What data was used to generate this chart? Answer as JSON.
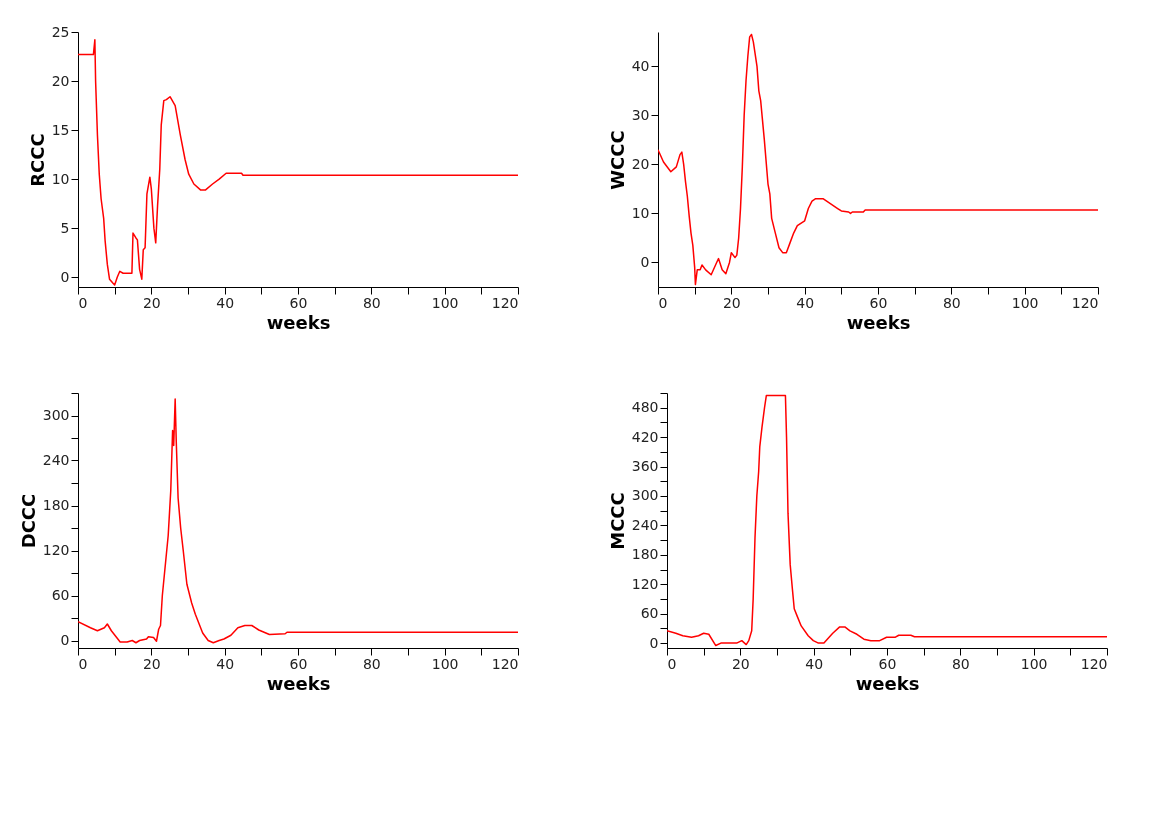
{
  "chart_data": [
    {
      "type": "line",
      "xlabel": "weeks",
      "ylabel": "RCCC",
      "xlim": [
        0,
        120
      ],
      "ylim": [
        -1,
        25
      ],
      "xticks": [
        0,
        {
          "value": 10,
          "label": null
        },
        20,
        {
          "value": 30,
          "label": null
        },
        40,
        {
          "value": 50,
          "label": null
        },
        60,
        {
          "value": 70,
          "label": null
        },
        80,
        {
          "value": 90,
          "label": null
        },
        100,
        {
          "value": 110,
          "label": null
        },
        120
      ],
      "yticks": [
        0,
        5,
        10,
        15,
        20,
        25
      ],
      "series": [
        {
          "color": "#ff0000",
          "x": [
            0,
            3,
            4.2,
            4.6,
            4.8,
            5.3,
            5.8,
            6.3,
            7,
            7.4,
            8,
            8.6,
            9.5,
            10,
            10.7,
            11.4,
            12.3,
            14.7,
            15,
            15.8,
            16.2,
            16.8,
            17.4,
            17.8,
            18.3,
            18.8,
            19.6,
            20,
            20.7,
            21.2,
            21.7,
            22.3,
            22.7,
            23.4,
            24.1,
            25.1,
            26.5,
            27.9,
            29.2,
            30.2,
            31.6,
            33.4,
            34.8,
            36.7,
            38.5,
            40.4,
            44.6,
            45,
            120
          ],
          "values": [
            22.7,
            22.7,
            22.7,
            24.2,
            20,
            14.5,
            10.5,
            8,
            6,
            3.7,
            1.3,
            -0.2,
            -0.6,
            -0.8,
            0,
            0.6,
            0.4,
            0.4,
            4.5,
            4,
            3.8,
            0.8,
            -0.2,
            2.8,
            3,
            8.5,
            10.2,
            9,
            5,
            3.5,
            7.3,
            11,
            15.5,
            18,
            18.1,
            18.4,
            17.5,
            14.5,
            12,
            10.5,
            9.5,
            8.9,
            8.9,
            9.5,
            10,
            10.6,
            10.6,
            10.4,
            10.4
          ]
        }
      ]
    },
    {
      "type": "line",
      "xlabel": "weeks",
      "ylabel": "WCCC",
      "xlim": [
        0,
        120
      ],
      "ylim": [
        -5,
        47
      ],
      "xticks": [
        0,
        {
          "value": 10,
          "label": null
        },
        20,
        {
          "value": 30,
          "label": null
        },
        40,
        {
          "value": 50,
          "label": null
        },
        60,
        {
          "value": 70,
          "label": null
        },
        80,
        {
          "value": 90,
          "label": null
        },
        100,
        {
          "value": 110,
          "label": null
        },
        120
      ],
      "yticks": [
        0,
        10,
        20,
        30,
        40
      ],
      "series": [
        {
          "color": "#ff0000",
          "x": [
            0,
            1.5,
            3.5,
            5,
            6,
            6.5,
            7,
            7.5,
            8,
            8.5,
            9,
            9.5,
            10,
            10.2,
            10.7,
            11.5,
            12,
            13,
            14.5,
            16,
            16.5,
            17.5,
            18.5,
            19.5,
            20,
            21,
            21.5,
            22,
            22.5,
            23,
            23.5,
            24,
            24.5,
            25,
            25.5,
            26,
            27,
            27.5,
            28,
            29,
            30,
            30.5,
            31,
            32,
            33,
            34,
            35,
            36,
            37,
            38,
            40,
            41,
            42,
            43,
            45,
            46,
            47,
            49,
            50,
            52,
            52.5,
            53,
            56,
            56.5,
            120
          ],
          "values": [
            23,
            20.5,
            18.5,
            19.5,
            22,
            22.5,
            20,
            16.5,
            13.5,
            9.5,
            6,
            3.5,
            -1,
            -4.5,
            -1.5,
            -1.5,
            -0.5,
            -1.5,
            -2.5,
            0,
            0.8,
            -1.5,
            -2.3,
            0,
            2,
            1,
            1.5,
            5,
            11,
            19.5,
            30,
            37,
            42,
            46,
            46.5,
            45,
            40,
            35,
            33,
            25,
            16,
            14,
            9,
            6,
            3,
            2,
            2,
            4,
            6,
            7.5,
            8.5,
            11,
            12.5,
            13,
            13,
            12.5,
            12,
            11,
            10.5,
            10.3,
            10,
            10.3,
            10.3,
            10.7,
            10.7
          ]
        }
      ]
    },
    {
      "type": "line",
      "xlabel": "weeks",
      "ylabel": "DCCC",
      "xlim": [
        0,
        120
      ],
      "ylim": [
        -10,
        330
      ],
      "xticks": [
        0,
        {
          "value": 10,
          "label": null
        },
        20,
        {
          "value": 30,
          "label": null
        },
        40,
        {
          "value": 50,
          "label": null
        },
        60,
        {
          "value": 70,
          "label": null
        },
        80,
        {
          "value": 90,
          "label": null
        },
        100,
        {
          "value": 110,
          "label": null
        },
        120
      ],
      "yticks": [
        0,
        {
          "value": 30,
          "label": null
        },
        60,
        {
          "value": 90,
          "label": null
        },
        120,
        {
          "value": 150,
          "label": null
        },
        180,
        {
          "value": 210,
          "label": null
        },
        240,
        {
          "value": 270,
          "label": null
        },
        300,
        {
          "value": 330,
          "label": null
        }
      ],
      "series": [
        {
          "color": "#ff0000",
          "x": [
            0,
            3.4,
            5.3,
            7.2,
            8,
            9.1,
            11.5,
            13.4,
            14.8,
            15.8,
            16.8,
            18.7,
            19.2,
            20.6,
            21.4,
            22,
            22.5,
            23,
            24,
            24.6,
            25.3,
            25.8,
            26.1,
            26.5,
            26.8,
            27.3,
            28,
            28.7,
            29.7,
            31,
            32,
            34,
            35.5,
            36.9,
            38.5,
            39.8,
            41.7,
            43.6,
            45.5,
            47.4,
            49.3,
            52.2,
            56.5,
            57,
            120
          ],
          "values": [
            25,
            17,
            13,
            17,
            22,
            13,
            -2,
            -2,
            0,
            -3,
            0,
            2,
            5,
            4,
            -1,
            15,
            20,
            60,
            110,
            140,
            200,
            280,
            260,
            322,
            265,
            190,
            150,
            120,
            75,
            50,
            35,
            10,
            0,
            -3,
            0,
            2,
            7,
            17,
            20,
            20,
            14,
            8,
            9,
            11,
            11
          ]
        }
      ]
    },
    {
      "type": "line",
      "xlabel": "weeks",
      "ylabel": "MCCC",
      "xlim": [
        0,
        120
      ],
      "ylim": [
        -10,
        510
      ],
      "xticks": [
        0,
        {
          "value": 10,
          "label": null
        },
        20,
        {
          "value": 30,
          "label": null
        },
        40,
        {
          "value": 50,
          "label": null
        },
        60,
        {
          "value": 70,
          "label": null
        },
        80,
        {
          "value": 90,
          "label": null
        },
        100,
        {
          "value": 110,
          "label": null
        },
        120
      ],
      "yticks": [
        0,
        {
          "value": 30,
          "label": null
        },
        60,
        {
          "value": 90,
          "label": null
        },
        120,
        {
          "value": 150,
          "label": null
        },
        180,
        {
          "value": 210,
          "label": null
        },
        240,
        {
          "value": 270,
          "label": null
        },
        300,
        {
          "value": 330,
          "label": null
        },
        360,
        {
          "value": 390,
          "label": null
        },
        420,
        {
          "value": 450,
          "label": null
        },
        480,
        {
          "value": 510,
          "label": null
        }
      ],
      "series": [
        {
          "color": "#ff0000",
          "x": [
            0,
            2.4,
            4.3,
            6.7,
            8.6,
            10,
            11.4,
            13.3,
            14.7,
            19,
            20.4,
            21.6,
            22.3,
            23.1,
            23.5,
            24,
            24.5,
            25,
            25.3,
            25.9,
            26.6,
            27.1,
            32.3,
            32.6,
            33,
            33.6,
            34.2,
            34.7,
            35.5,
            36.6,
            38.5,
            39.9,
            41.3,
            42.8,
            45.2,
            47.1,
            48.5,
            49.9,
            51.8,
            53.7,
            55.6,
            58,
            59.9,
            62.3,
            63.2,
            66.5,
            67.5,
            120
          ],
          "values": [
            25,
            20,
            15,
            12,
            15,
            20,
            18,
            -5,
            0,
            0,
            5,
            -3,
            5,
            25,
            90,
            215,
            300,
            350,
            400,
            440,
            480,
            505,
            505,
            420,
            265,
            160,
            110,
            70,
            55,
            35,
            15,
            5,
            0,
            0,
            20,
            33,
            33,
            25,
            18,
            8,
            5,
            5,
            12,
            12,
            16,
            16,
            13,
            13
          ]
        }
      ]
    }
  ]
}
